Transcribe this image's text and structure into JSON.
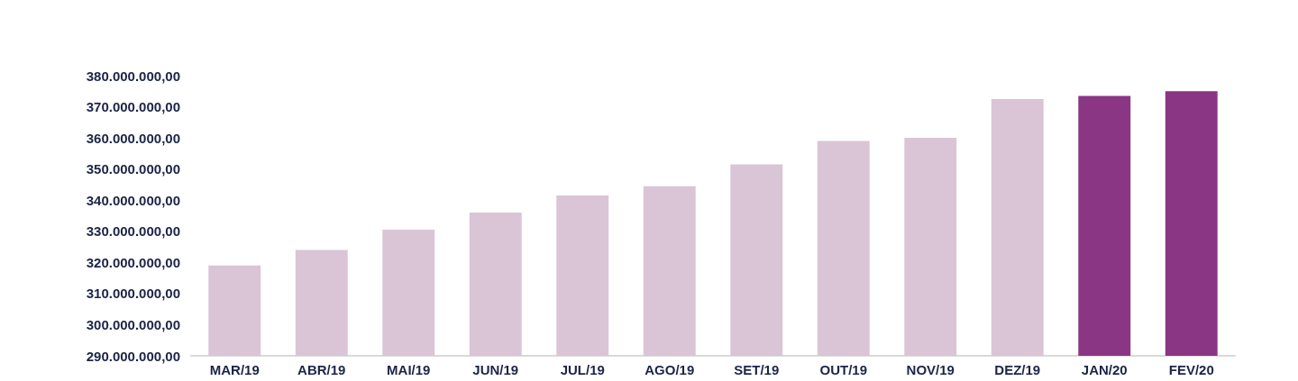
{
  "chart_data": {
    "type": "bar",
    "categories": [
      "MAR/19",
      "ABR/19",
      "MAI/19",
      "JUN/19",
      "JUL/19",
      "AGO/19",
      "SET/19",
      "OUT/19",
      "NOV/19",
      "DEZ/19",
      "JAN/20",
      "FEV/20"
    ],
    "values": [
      319000000,
      324000000,
      330500000,
      336000000,
      341500000,
      344500000,
      351500000,
      359000000,
      360000000,
      372500000,
      373500000,
      375000000
    ],
    "colors": [
      "#d9c5d5",
      "#d9c5d5",
      "#d9c5d5",
      "#d9c5d5",
      "#d9c5d5",
      "#d9c5d5",
      "#d9c5d5",
      "#d9c5d5",
      "#d9c5d5",
      "#d9c5d5",
      "#8b3585",
      "#8b3585"
    ],
    "ylim": [
      290000000,
      380000000
    ],
    "yticks": [
      {
        "value": 290000000,
        "label": "290.000.000,00"
      },
      {
        "value": 300000000,
        "label": "300.000.000,00"
      },
      {
        "value": 310000000,
        "label": "310.000.000,00"
      },
      {
        "value": 320000000,
        "label": "320.000.000,00"
      },
      {
        "value": 330000000,
        "label": "330.000.000,00"
      },
      {
        "value": 340000000,
        "label": "340.000.000,00"
      },
      {
        "value": 350000000,
        "label": "350.000.000,00"
      },
      {
        "value": 360000000,
        "label": "360.000.000,00"
      },
      {
        "value": 370000000,
        "label": "370.000.000,00"
      },
      {
        "value": 380000000,
        "label": "380.000.000,00"
      }
    ],
    "grid": false
  }
}
